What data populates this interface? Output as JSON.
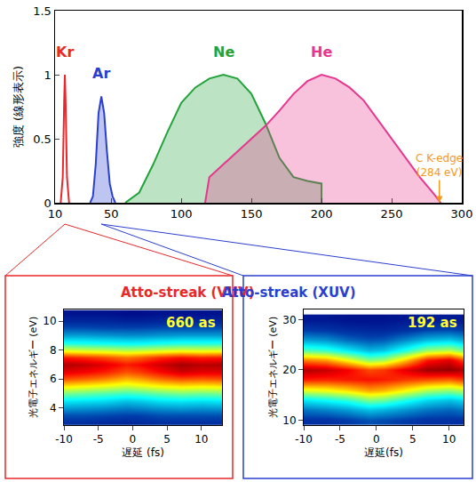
{
  "chart_data": [
    {
      "type": "area",
      "ylabel": "強度 (線形表示)",
      "xlim": [
        10,
        300
      ],
      "xticks": [
        10,
        50,
        100,
        150,
        200,
        250,
        300
      ],
      "ylim": [
        0,
        1.5
      ],
      "yticks": [
        0,
        0.5,
        1,
        1.5
      ],
      "grid": false,
      "series": [
        {
          "name": "Kr",
          "color": "#e8282b",
          "type": "line",
          "x": [
            14,
            15.5,
            16.5,
            17,
            17.5,
            18.5,
            20
          ],
          "values": [
            0,
            0.2,
            0.8,
            1.0,
            0.8,
            0.2,
            0
          ]
        },
        {
          "name": "Ar",
          "color": "#2a3fd0",
          "type": "area",
          "x": [
            35,
            37,
            39,
            41,
            43,
            45,
            47,
            49,
            51,
            53
          ],
          "values": [
            0,
            0.05,
            0.3,
            0.7,
            0.83,
            0.7,
            0.4,
            0.15,
            0.05,
            0
          ]
        },
        {
          "name": "Ne",
          "color": "#22a33a",
          "type": "area",
          "x": [
            60,
            70,
            80,
            90,
            100,
            110,
            120,
            130,
            140,
            150,
            160,
            170,
            180,
            190,
            200,
            200
          ],
          "values": [
            0,
            0.08,
            0.3,
            0.55,
            0.78,
            0.9,
            0.97,
            1.0,
            0.97,
            0.85,
            0.62,
            0.35,
            0.2,
            0.17,
            0.15,
            0
          ]
        },
        {
          "name": "He",
          "color": "#e8368f",
          "type": "area",
          "x": [
            117,
            120,
            130,
            140,
            150,
            160,
            170,
            180,
            190,
            200,
            210,
            220,
            230,
            240,
            250,
            260,
            270,
            280,
            285
          ],
          "values": [
            0,
            0.2,
            0.3,
            0.4,
            0.5,
            0.6,
            0.72,
            0.85,
            0.95,
            1.0,
            0.97,
            0.9,
            0.8,
            0.65,
            0.5,
            0.35,
            0.2,
            0.07,
            0
          ]
        }
      ],
      "annotations": [
        {
          "text": "C K-edge (284 eV)",
          "x": 284,
          "y": 0,
          "color": "#f39a1e"
        }
      ]
    },
    {
      "type": "heatmap",
      "title": "Atto-streak (VUV)",
      "color": "#e8282b",
      "annotations": [
        {
          "text": "660 as"
        }
      ],
      "xlabel": "遅延 (fs)",
      "ylabel": "光電子エネルギー (eV)",
      "xlim": [
        -10,
        13
      ],
      "xticks": [
        -10,
        -5,
        0,
        5,
        10
      ],
      "ylim": [
        2.8,
        10.8
      ],
      "yticks": [
        4,
        6,
        8,
        10
      ],
      "zlim": [
        0,
        1
      ],
      "x": [
        -10,
        -7,
        -4,
        -1,
        1,
        4,
        7,
        10,
        13
      ],
      "y": [
        3,
        3.5,
        4,
        4.5,
        5,
        5.5,
        6,
        6.5,
        7,
        7.5,
        8,
        8.5,
        9,
        9.5,
        10,
        10.5
      ],
      "z": [
        [
          0.1,
          0.1,
          0.09,
          0.08,
          0.09,
          0.1,
          0.1,
          0.1,
          0.1
        ],
        [
          0.15,
          0.15,
          0.14,
          0.13,
          0.13,
          0.15,
          0.15,
          0.15,
          0.15
        ],
        [
          0.25,
          0.24,
          0.23,
          0.21,
          0.22,
          0.24,
          0.25,
          0.24,
          0.25
        ],
        [
          0.35,
          0.34,
          0.33,
          0.3,
          0.31,
          0.34,
          0.35,
          0.34,
          0.35
        ],
        [
          0.5,
          0.48,
          0.46,
          0.44,
          0.45,
          0.48,
          0.5,
          0.49,
          0.5
        ],
        [
          0.65,
          0.63,
          0.61,
          0.58,
          0.6,
          0.63,
          0.65,
          0.64,
          0.65
        ],
        [
          0.8,
          0.78,
          0.75,
          0.7,
          0.72,
          0.77,
          0.8,
          0.79,
          0.8
        ],
        [
          0.9,
          0.88,
          0.85,
          0.8,
          0.82,
          0.87,
          0.92,
          0.9,
          0.9
        ],
        [
          0.95,
          0.93,
          0.9,
          0.85,
          0.87,
          0.92,
          0.96,
          0.94,
          0.95
        ],
        [
          0.85,
          0.83,
          0.8,
          0.76,
          0.78,
          0.83,
          0.86,
          0.84,
          0.85
        ],
        [
          0.6,
          0.58,
          0.57,
          0.55,
          0.56,
          0.58,
          0.6,
          0.59,
          0.6
        ],
        [
          0.4,
          0.39,
          0.38,
          0.37,
          0.37,
          0.39,
          0.4,
          0.4,
          0.4
        ],
        [
          0.25,
          0.25,
          0.24,
          0.23,
          0.23,
          0.24,
          0.25,
          0.25,
          0.25
        ],
        [
          0.15,
          0.15,
          0.14,
          0.14,
          0.14,
          0.15,
          0.15,
          0.15,
          0.15
        ],
        [
          0.08,
          0.08,
          0.08,
          0.07,
          0.07,
          0.08,
          0.08,
          0.08,
          0.08
        ],
        [
          0.04,
          0.04,
          0.04,
          0.03,
          0.03,
          0.04,
          0.04,
          0.04,
          0.04
        ]
      ]
    },
    {
      "type": "heatmap",
      "title": "Atto-streak (XUV)",
      "color": "#2a3fd0",
      "annotations": [
        {
          "text": "192 as"
        }
      ],
      "xlabel": "遅延(fs)",
      "ylabel": "光電子エネルギー (eV)",
      "xlim": [
        -10,
        12
      ],
      "xticks": [
        -10,
        -5,
        0,
        5,
        10
      ],
      "ylim": [
        9,
        32
      ],
      "yticks": [
        10,
        20,
        30
      ],
      "zlim": [
        0,
        1
      ],
      "x": [
        -10,
        -7,
        -4,
        -1,
        1,
        4,
        7,
        10,
        12
      ],
      "y": [
        10,
        12,
        14,
        16,
        18,
        20,
        22,
        24,
        26,
        28,
        30
      ],
      "z": [
        [
          0.1,
          0.1,
          0.12,
          0.15,
          0.14,
          0.12,
          0.1,
          0.1,
          0.1
        ],
        [
          0.2,
          0.22,
          0.25,
          0.3,
          0.28,
          0.24,
          0.2,
          0.18,
          0.2
        ],
        [
          0.35,
          0.38,
          0.42,
          0.5,
          0.48,
          0.4,
          0.33,
          0.3,
          0.33
        ],
        [
          0.6,
          0.62,
          0.66,
          0.72,
          0.7,
          0.63,
          0.55,
          0.52,
          0.56
        ],
        [
          0.85,
          0.84,
          0.85,
          0.86,
          0.85,
          0.82,
          0.8,
          0.78,
          0.82
        ],
        [
          0.95,
          0.93,
          0.88,
          0.8,
          0.82,
          0.9,
          0.97,
          0.98,
          0.95
        ],
        [
          0.75,
          0.72,
          0.62,
          0.5,
          0.53,
          0.68,
          0.85,
          0.9,
          0.8
        ],
        [
          0.45,
          0.42,
          0.35,
          0.28,
          0.3,
          0.4,
          0.52,
          0.55,
          0.48
        ],
        [
          0.25,
          0.23,
          0.18,
          0.15,
          0.16,
          0.22,
          0.28,
          0.3,
          0.26
        ],
        [
          0.12,
          0.11,
          0.09,
          0.08,
          0.08,
          0.1,
          0.13,
          0.14,
          0.12
        ],
        [
          0.05,
          0.05,
          0.04,
          0.04,
          0.04,
          0.05,
          0.06,
          0.06,
          0.05
        ]
      ]
    }
  ]
}
